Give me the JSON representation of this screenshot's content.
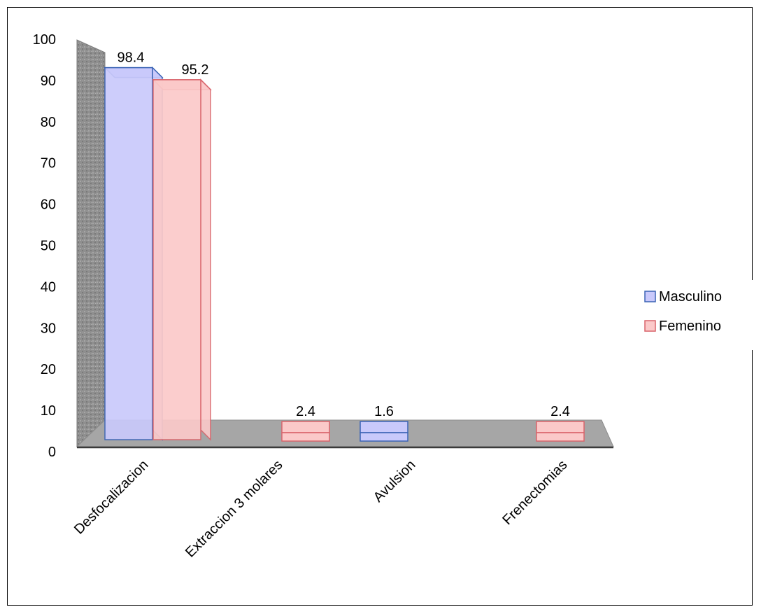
{
  "chart_data": {
    "type": "bar",
    "title": "",
    "xlabel": "",
    "ylabel": "",
    "categories": [
      "Desfocalizacion",
      "Extraccion 3 molares",
      "Avulsion",
      "Frenectomias"
    ],
    "series": [
      {
        "name": "Masculino",
        "values": [
          98.4,
          null,
          1.6,
          null
        ],
        "color": "#c9c9fb",
        "stroke": "#3a63b5"
      },
      {
        "name": "Femenino",
        "values": [
          95.2,
          2.4,
          null,
          2.4
        ],
        "color": "#fbc9c9",
        "stroke": "#d9646b"
      }
    ],
    "ylim": [
      0,
      100
    ],
    "yticks": [
      "0",
      "10",
      "20",
      "30",
      "40",
      "50",
      "60",
      "70",
      "80",
      "90",
      "100"
    ],
    "legend_position": "right",
    "gridlines": false,
    "style": "3d-clustered-column"
  }
}
